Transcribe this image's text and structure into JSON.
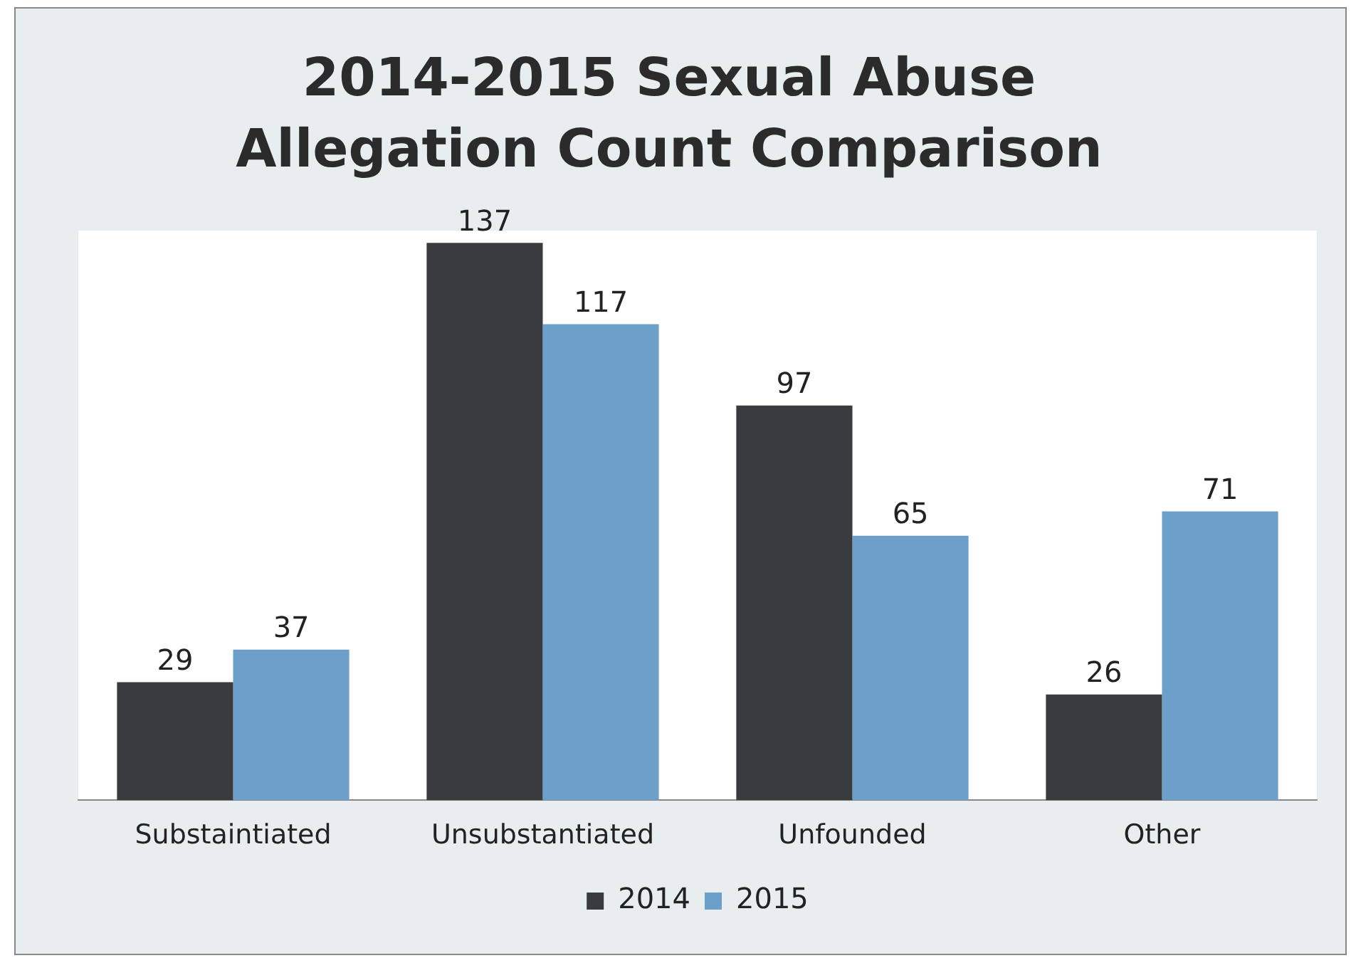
{
  "chart_data": {
    "type": "bar",
    "title": "2014-2015 Sexual Abuse Allegation Count Comparison",
    "categories": [
      "Substaintiated",
      "Unsubstantiated",
      "Unfounded",
      "Other"
    ],
    "series": [
      {
        "name": "2014",
        "color": "#3a3b3f",
        "values": [
          29,
          137,
          97,
          26
        ]
      },
      {
        "name": "2015",
        "color": "#6c9fca",
        "values": [
          37,
          117,
          65,
          71
        ]
      }
    ],
    "data_labels": true,
    "grid": false,
    "legend": "bottom"
  }
}
